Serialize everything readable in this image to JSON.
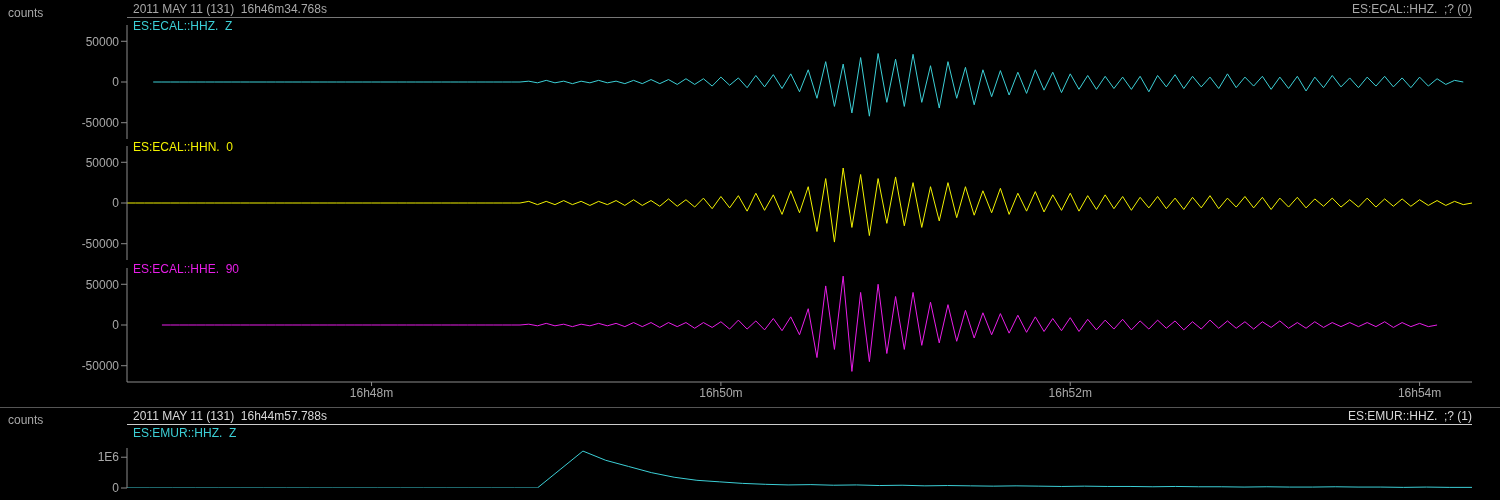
{
  "chart_data": [
    {
      "type": "line",
      "title": "2011 MAY 11 (131)  16h46m34.768s",
      "subtitle": "ES:ECAL::HHZ.  ;? (0)",
      "ylabel": "counts",
      "tick_labels": "y",
      "ylim": [
        -70000,
        70000
      ],
      "yticks": [
        -50000,
        0,
        50000
      ],
      "categories": [
        null,
        null,
        null,
        null,
        null,
        null,
        null,
        null,
        null,
        null,
        null,
        null,
        null,
        null,
        null,
        null,
        null,
        null,
        null,
        null,
        null,
        null,
        null,
        null,
        null,
        null,
        null,
        null,
        null,
        null,
        null,
        null,
        null,
        null,
        null,
        null,
        null,
        null,
        null,
        null,
        null,
        null,
        null,
        null,
        null,
        null,
        null,
        null,
        null,
        null,
        null,
        null,
        null,
        null,
        null,
        null,
        null,
        null,
        null,
        null,
        null,
        null,
        null,
        null,
        null,
        null,
        null,
        null,
        null,
        null,
        null,
        null,
        null,
        null,
        null,
        null,
        null,
        null,
        null,
        null,
        null,
        null,
        null,
        null,
        null,
        null,
        null,
        null,
        null,
        null,
        null,
        null,
        null,
        null,
        null,
        null,
        null,
        null,
        null,
        null,
        null,
        null,
        null,
        null,
        null,
        null,
        null,
        null,
        null,
        null,
        null,
        null,
        null,
        null,
        null,
        null,
        null,
        null,
        null,
        null,
        null,
        null,
        null,
        null,
        null,
        null,
        null,
        null,
        null,
        null,
        null,
        null,
        null,
        null,
        null,
        null,
        null,
        null,
        null,
        null,
        null,
        null,
        null,
        null,
        null,
        null,
        null,
        null,
        null,
        null,
        null,
        null,
        null,
        null,
        null
      ],
      "series": [
        {
          "name": "ES:ECAL::HHZ.  Z",
          "color": "#3ccfd6",
          "values": [
            null,
            null,
            null,
            0,
            0,
            0,
            0,
            0,
            0,
            0,
            0,
            0,
            0,
            0,
            0,
            0,
            0,
            0,
            0,
            0,
            0,
            0,
            0,
            0,
            0,
            0,
            0,
            0,
            0,
            0,
            0,
            0,
            0,
            0,
            0,
            0,
            0,
            0,
            0,
            0,
            0,
            0,
            0,
            0,
            0,
            0,
            1000,
            -1000,
            2000,
            -1000,
            1000,
            -2000,
            1000,
            -1000,
            2000,
            -1000,
            1000,
            -2000,
            2000,
            -2000,
            3000,
            -2000,
            3000,
            -3000,
            4000,
            -3000,
            4000,
            -5000,
            6000,
            -4000,
            5000,
            -7000,
            8000,
            -6000,
            9000,
            -8000,
            10000,
            -12000,
            15000,
            -20000,
            25000,
            -30000,
            22000,
            -38000,
            30000,
            -42000,
            35000,
            -25000,
            28000,
            -30000,
            34000,
            -25000,
            20000,
            -32000,
            25000,
            -20000,
            18000,
            -28000,
            15000,
            -18000,
            14000,
            -16000,
            12000,
            -14000,
            15000,
            -10000,
            12000,
            -13000,
            10000,
            -9000,
            8000,
            -9000,
            7000,
            -8000,
            6000,
            -9000,
            7000,
            -12000,
            8000,
            -6000,
            9000,
            -8000,
            7000,
            -6000,
            6000,
            -8000,
            10000,
            -7000,
            6000,
            -5000,
            7000,
            -9000,
            6000,
            -8000,
            7000,
            -11000,
            6000,
            -7000,
            8000,
            -6000,
            5000,
            -7000,
            6000,
            -5000,
            7000,
            -6000,
            5000,
            -7000,
            6000,
            -5000,
            4000,
            -3000,
            2000,
            0,
            null
          ]
        }
      ]
    },
    {
      "type": "line",
      "tick_labels": "y",
      "ylim": [
        -70000,
        70000
      ],
      "yticks": [
        -50000,
        0,
        50000
      ],
      "categories": [
        null,
        null,
        null,
        null,
        null,
        null,
        null,
        null,
        null,
        null,
        null,
        null,
        null,
        null,
        null,
        null,
        null,
        null,
        null,
        null,
        null,
        null,
        null,
        null,
        null,
        null,
        null,
        null,
        null,
        null,
        null,
        null,
        null,
        null,
        null,
        null,
        null,
        null,
        null,
        null,
        null,
        null,
        null,
        null,
        null,
        null,
        null,
        null,
        null,
        null,
        null,
        null,
        null,
        null,
        null,
        null,
        null,
        null,
        null,
        null,
        null,
        null,
        null,
        null,
        null,
        null,
        null,
        null,
        null,
        null,
        null,
        null,
        null,
        null,
        null,
        null,
        null,
        null,
        null,
        null,
        null,
        null,
        null,
        null,
        null,
        null,
        null,
        null,
        null,
        null,
        null,
        null,
        null,
        null,
        null,
        null,
        null,
        null,
        null,
        null,
        null,
        null,
        null,
        null,
        null,
        null,
        null,
        null,
        null,
        null,
        null,
        null,
        null,
        null,
        null,
        null,
        null,
        null,
        null,
        null,
        null,
        null,
        null,
        null,
        null,
        null,
        null,
        null,
        null,
        null,
        null,
        null,
        null,
        null,
        null,
        null,
        null,
        null,
        null,
        null,
        null,
        null,
        null,
        null,
        null,
        null,
        null,
        null,
        null,
        null,
        null,
        null,
        null,
        null,
        null
      ],
      "series": [
        {
          "name": "ES:ECAL::HHN.  0",
          "color": "#f2f200",
          "values": [
            0,
            0,
            0,
            0,
            0,
            0,
            0,
            0,
            0,
            0,
            0,
            0,
            0,
            0,
            0,
            0,
            0,
            0,
            0,
            0,
            0,
            0,
            0,
            0,
            0,
            0,
            0,
            0,
            0,
            0,
            0,
            0,
            0,
            0,
            0,
            0,
            0,
            0,
            0,
            0,
            0,
            0,
            0,
            0,
            0,
            0,
            2000,
            -2000,
            2000,
            -2000,
            3000,
            -2000,
            2000,
            -3000,
            2000,
            -2000,
            3000,
            -3000,
            4000,
            -3000,
            3000,
            -4000,
            5000,
            -4000,
            4000,
            -5000,
            6000,
            -7000,
            8000,
            -6000,
            9000,
            -10000,
            12000,
            -9000,
            10000,
            -14000,
            15000,
            -12000,
            20000,
            -35000,
            30000,
            -48000,
            43000,
            -30000,
            35000,
            -40000,
            30000,
            -25000,
            32000,
            -28000,
            25000,
            -30000,
            20000,
            -22000,
            25000,
            -18000,
            20000,
            -15000,
            15000,
            -12000,
            18000,
            -14000,
            12000,
            -10000,
            14000,
            -11000,
            10000,
            -9000,
            12000,
            -10000,
            9000,
            -8000,
            10000,
            -7000,
            8000,
            -9000,
            7000,
            -6000,
            8000,
            -7000,
            6000,
            -8000,
            7000,
            -6000,
            9000,
            -7000,
            6000,
            -5000,
            8000,
            -6000,
            7000,
            -8000,
            6000,
            -5000,
            7000,
            -6000,
            5000,
            -4000,
            6000,
            -5000,
            4000,
            -5000,
            6000,
            -5000,
            5000,
            -4000,
            5000,
            -4000,
            4000,
            -3000,
            3000,
            -3000,
            2000,
            -2000,
            0
          ]
        }
      ]
    },
    {
      "type": "line",
      "ylim": [
        -70000,
        70000
      ],
      "yticks": [
        -50000,
        0,
        50000
      ],
      "categories": [
        null,
        null,
        null,
        null,
        null,
        null,
        null,
        null,
        null,
        null,
        null,
        null,
        null,
        null,
        null,
        null,
        null,
        null,
        null,
        null,
        null,
        null,
        null,
        null,
        null,
        null,
        null,
        null,
        "16h48m",
        null,
        null,
        null,
        null,
        null,
        null,
        null,
        null,
        null,
        null,
        null,
        null,
        null,
        null,
        null,
        null,
        null,
        null,
        null,
        null,
        null,
        null,
        null,
        null,
        null,
        null,
        null,
        null,
        null,
        null,
        null,
        null,
        null,
        null,
        null,
        null,
        null,
        null,
        null,
        "16h50m",
        null,
        null,
        null,
        null,
        null,
        null,
        null,
        null,
        null,
        null,
        null,
        null,
        null,
        null,
        null,
        null,
        null,
        null,
        null,
        null,
        null,
        null,
        null,
        null,
        null,
        null,
        null,
        null,
        null,
        null,
        null,
        null,
        null,
        null,
        null,
        null,
        null,
        null,
        null,
        "16h52m",
        null,
        null,
        null,
        null,
        null,
        null,
        null,
        null,
        null,
        null,
        null,
        null,
        null,
        null,
        null,
        null,
        null,
        null,
        null,
        null,
        null,
        null,
        null,
        null,
        null,
        null,
        null,
        null,
        null,
        null,
        null,
        null,
        null,
        null,
        null,
        null,
        null,
        null,
        null,
        "16h54m",
        null,
        null,
        null,
        null,
        null,
        null
      ],
      "series": [
        {
          "name": "ES:ECAL::HHE.  90",
          "color": "#e81ee8",
          "values": [
            null,
            null,
            null,
            null,
            0,
            0,
            0,
            0,
            0,
            0,
            0,
            0,
            0,
            0,
            0,
            0,
            0,
            0,
            0,
            0,
            0,
            0,
            0,
            0,
            0,
            0,
            0,
            0,
            0,
            0,
            0,
            0,
            0,
            0,
            0,
            0,
            0,
            0,
            0,
            0,
            0,
            0,
            0,
            0,
            0,
            0,
            1000,
            -1000,
            2000,
            -1000,
            1000,
            -2000,
            1000,
            -1000,
            2000,
            -1000,
            2000,
            -2000,
            3000,
            -2000,
            3000,
            -3000,
            3000,
            -2000,
            3000,
            -4000,
            3000,
            -3000,
            4000,
            -5000,
            6000,
            -5000,
            5000,
            -6000,
            8000,
            -7000,
            10000,
            -12000,
            20000,
            -40000,
            48000,
            -30000,
            60000,
            -57000,
            40000,
            -45000,
            50000,
            -35000,
            35000,
            -30000,
            40000,
            -25000,
            28000,
            -22000,
            25000,
            -20000,
            18000,
            -16000,
            15000,
            -12000,
            14000,
            -10000,
            12000,
            -9000,
            10000,
            -8000,
            8000,
            -7000,
            9000,
            -8000,
            7000,
            -6000,
            6000,
            -5000,
            7000,
            -6000,
            5000,
            -5000,
            6000,
            -4000,
            5000,
            -6000,
            4000,
            -5000,
            6000,
            -4000,
            5000,
            -4000,
            4000,
            -5000,
            4000,
            -3000,
            5000,
            -4000,
            3000,
            -4000,
            4000,
            -3000,
            3000,
            -2000,
            3000,
            -2000,
            3000,
            -2000,
            4000,
            -3000,
            3000,
            -2000,
            2000,
            -2000,
            0,
            null,
            null,
            null,
            null
          ]
        }
      ]
    },
    {
      "type": "line",
      "title": "2011 MAY 11 (131)  16h44m57.788s",
      "subtitle": "ES:EMUR::HHZ.  ;? (1)",
      "ylabel": "counts",
      "tick_labels": "y",
      "categories": [
        null,
        null,
        null,
        null,
        null,
        null,
        null,
        null,
        null,
        null,
        null,
        null,
        null,
        null,
        null,
        null,
        null,
        null,
        null,
        null,
        null,
        null,
        null,
        null,
        null,
        null,
        null,
        null,
        null,
        null,
        null,
        null,
        null,
        null,
        null,
        null,
        null,
        null,
        null,
        null,
        null,
        null,
        null,
        null,
        null,
        null,
        null,
        null,
        null,
        null,
        null,
        null,
        null,
        null,
        null,
        null,
        null,
        null,
        null,
        null
      ],
      "ylim": [
        0,
        1300000
      ],
      "yticks": [
        0,
        {
          "value": 1000000,
          "label": "1E6"
        }
      ],
      "series": [
        {
          "name": "ES:EMUR::HHZ.  Z",
          "color": "#3ccfd6",
          "values": [
            0,
            0,
            0,
            0,
            0,
            0,
            0,
            0,
            0,
            0,
            0,
            0,
            0,
            0,
            0,
            0,
            0,
            0,
            0,
            600000,
            1200000,
            900000,
            700000,
            500000,
            350000,
            250000,
            200000,
            150000,
            120000,
            100000,
            110000,
            90000,
            100000,
            80000,
            90000,
            70000,
            80000,
            70000,
            60000,
            70000,
            60000,
            50000,
            60000,
            50000,
            50000,
            40000,
            50000,
            40000,
            40000,
            30000,
            40000,
            30000,
            30000,
            40000,
            30000,
            30000,
            20000,
            30000,
            20000,
            20000
          ]
        }
      ]
    }
  ]
}
